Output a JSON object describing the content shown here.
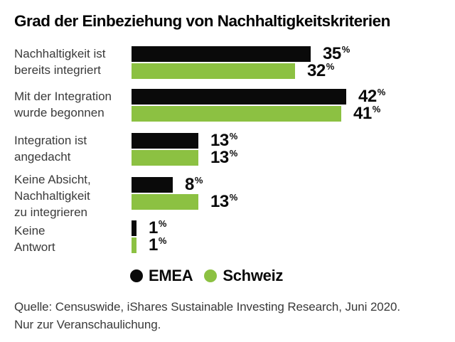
{
  "title": "Grad der Einbeziehung von Nachhaltigkeitskriterien",
  "chart_data": {
    "type": "bar",
    "orientation": "horizontal",
    "title": "Grad der Einbeziehung von Nachhaltigkeitskriterien",
    "categories": [
      "Nachhaltigkeit ist\nbereits integriert",
      "Mit der Integration\nwurde begonnen",
      "Integration ist\nangedacht",
      "Keine Absicht,\nNachhaltigkeit\nzu integrieren",
      "Keine\nAntwort"
    ],
    "series": [
      {
        "name": "EMEA",
        "color": "#0a0a0a",
        "values": [
          35,
          42,
          13,
          8,
          1
        ]
      },
      {
        "name": "Schweiz",
        "color": "#8cc142",
        "values": [
          32,
          41,
          13,
          13,
          1
        ]
      }
    ],
    "unit": "%",
    "xlim": [
      0,
      45
    ],
    "grid": false,
    "legend_position": "bottom",
    "value_labels": "outside-end"
  },
  "legend": {
    "items": [
      {
        "label": "EMEA",
        "color": "#0a0a0a"
      },
      {
        "label": "Schweiz",
        "color": "#8cc142"
      }
    ]
  },
  "source": {
    "line1": "Quelle: Censuswide, iShares Sustainable Investing Research, Juni 2020.",
    "line2": "Nur zur Veranschaulichung."
  }
}
